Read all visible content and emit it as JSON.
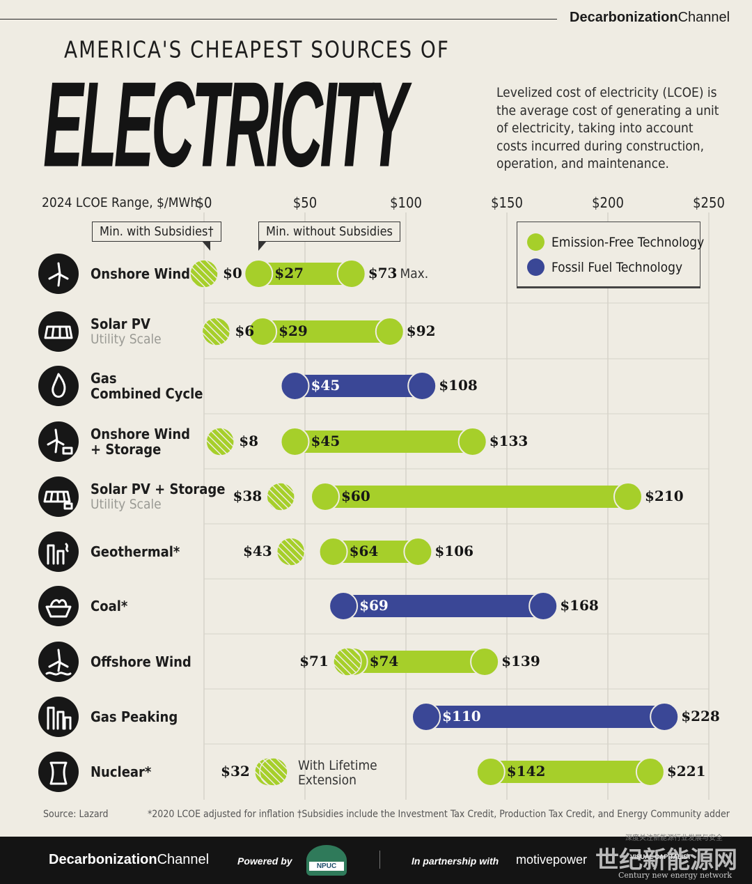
{
  "header": {
    "brand_bold": "Decarbonization",
    "brand_light": "Channel",
    "kicker": "AMERICA'S CHEAPEST SOURCES OF",
    "headline": "ELECTRICITY",
    "description": "Levelized cost of electricity (LCOE) is the average cost of generating a unit of electricity, taking into account costs incurred during construction, operation, and maintenance."
  },
  "callouts": {
    "with_subsidies": "Min. with Subsidies†",
    "without_subsidies": "Min. without Subsidies",
    "max": "Max.",
    "lifetime_extension": [
      "With Lifetime",
      "Extension"
    ]
  },
  "legend": {
    "items": [
      {
        "label": "Emission-Free Technology",
        "color": "#a6cf2a"
      },
      {
        "label": "Fossil Fuel Technology",
        "color": "#3a4796"
      }
    ]
  },
  "colors": {
    "emission_free": "#a6cf2a",
    "fossil": "#3a4796",
    "background": "#efece3"
  },
  "chart_data": {
    "type": "bar",
    "subtype": "range",
    "title": "ELECTRICITY",
    "xlabel": "2024 LCOE Range, $/MWh",
    "xlim": [
      0,
      250
    ],
    "xticks": [
      0,
      50,
      100,
      150,
      200,
      250
    ],
    "xtick_labels": [
      "$0",
      "$50",
      "$100",
      "$150",
      "$200",
      "$250"
    ],
    "grid": true,
    "legend_position": "top-right",
    "rows": [
      {
        "name": "Onshore Wind",
        "sub": "",
        "icon": "wind-turbine-icon",
        "category": "emission_free",
        "min_with_subsidies": 0,
        "min": 27,
        "max": 73,
        "labels": {
          "sub": "$0",
          "min": "$27",
          "max": "$73"
        }
      },
      {
        "name": "Solar PV",
        "sub": "Utility Scale",
        "icon": "solar-panel-icon",
        "category": "emission_free",
        "min_with_subsidies": 6,
        "min": 29,
        "max": 92,
        "labels": {
          "sub": "$6",
          "min": "$29",
          "max": "$92"
        }
      },
      {
        "name": "Gas",
        "sub": "Combined Cycle",
        "name2": "Combined Cycle",
        "icon": "flame-icon",
        "category": "fossil",
        "min_with_subsidies": null,
        "min": 45,
        "max": 108,
        "labels": {
          "sub": "",
          "min": "$45",
          "max": "$108"
        }
      },
      {
        "name": "Onshore Wind",
        "name2": "+ Storage",
        "sub": "",
        "icon": "wind-storage-icon",
        "category": "emission_free",
        "min_with_subsidies": 8,
        "min": 45,
        "max": 133,
        "labels": {
          "sub": "$8",
          "min": "$45",
          "max": "$133"
        }
      },
      {
        "name": "Solar PV + Storage",
        "sub": "Utility Scale",
        "icon": "solar-storage-icon",
        "category": "emission_free",
        "min_with_subsidies": 38,
        "min": 60,
        "max": 210,
        "labels": {
          "sub": "$38",
          "min": "$60",
          "max": "$210"
        }
      },
      {
        "name": "Geothermal*",
        "sub": "",
        "icon": "geothermal-plant-icon",
        "category": "emission_free",
        "min_with_subsidies": 43,
        "min": 64,
        "max": 106,
        "labels": {
          "sub": "$43",
          "min": "$64",
          "max": "$106"
        }
      },
      {
        "name": "Coal*",
        "sub": "",
        "icon": "coal-cart-icon",
        "category": "fossil",
        "min_with_subsidies": null,
        "min": 69,
        "max": 168,
        "labels": {
          "sub": "",
          "min": "$69",
          "max": "$168"
        }
      },
      {
        "name": "Offshore Wind",
        "sub": "",
        "icon": "offshore-turbine-icon",
        "category": "emission_free",
        "min_with_subsidies": 71,
        "min": 74,
        "max": 139,
        "labels": {
          "sub": "$71",
          "min": "$74",
          "max": "$139"
        }
      },
      {
        "name": "Gas Peaking",
        "sub": "",
        "icon": "power-plant-icon",
        "category": "fossil",
        "min_with_subsidies": null,
        "min": 110,
        "max": 228,
        "labels": {
          "sub": "",
          "min": "$110",
          "max": "$228"
        }
      },
      {
        "name": "Nuclear*",
        "sub": "",
        "icon": "nuclear-plant-icon",
        "category": "emission_free",
        "min_with_subsidies": 32,
        "min": 142,
        "max": 221,
        "labels": {
          "sub": "$32",
          "min": "$142",
          "max": "$221"
        }
      }
    ]
  },
  "footer": {
    "source": "Source: Lazard",
    "note": "*2020 LCOE adjusted for inflation  †Subsidies include the Investment Tax Credit, Production Tax Credit, and Energy Community adder",
    "brand_bold": "Decarbonization",
    "brand_light": "Channel",
    "powered_by": "Powered by",
    "npuc": "NPUC",
    "partnership": "In partnership with",
    "motive": "motivepower",
    "visual": "VISUAL CAPITALIST",
    "watermark": "世纪新能源网",
    "watermark_en": "Century new energy network",
    "watermark_small": "深度关注新能源行业发展与安全"
  }
}
